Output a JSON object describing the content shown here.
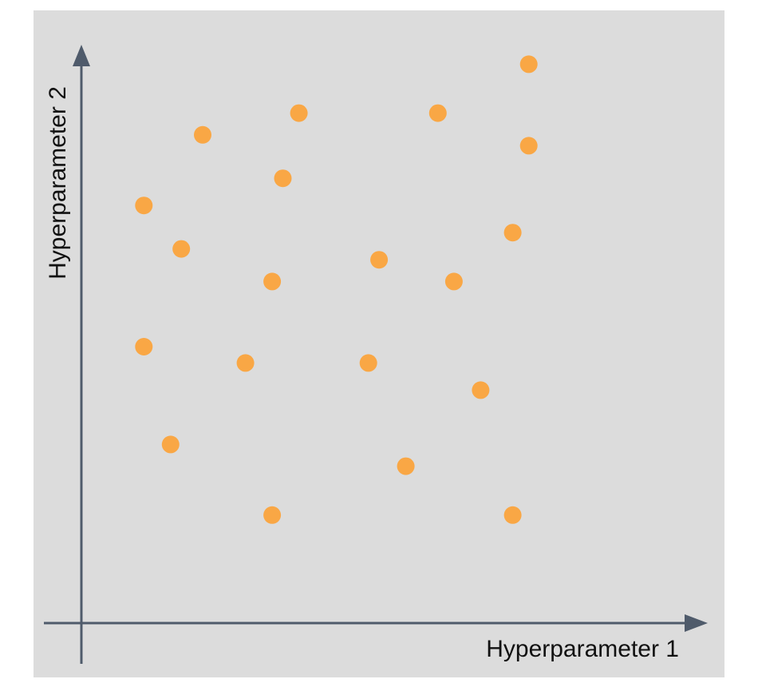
{
  "chart_data": {
    "type": "scatter",
    "title": "",
    "xlabel": "Hyperparameter 1",
    "ylabel": "Hyperparameter 2",
    "xlim": [
      0,
      10
    ],
    "ylim": [
      0,
      10
    ],
    "grid": false,
    "legend": "none",
    "point_color": "#f9a745",
    "series": [
      {
        "points": [
          {
            "x": 8.1,
            "y": 9.7
          },
          {
            "x": 3.8,
            "y": 8.8
          },
          {
            "x": 6.4,
            "y": 8.8
          },
          {
            "x": 2.0,
            "y": 8.4
          },
          {
            "x": 8.1,
            "y": 8.2
          },
          {
            "x": 3.5,
            "y": 7.6
          },
          {
            "x": 0.9,
            "y": 7.1
          },
          {
            "x": 5.3,
            "y": 6.1
          },
          {
            "x": 7.8,
            "y": 6.6
          },
          {
            "x": 1.6,
            "y": 6.3
          },
          {
            "x": 3.3,
            "y": 5.7
          },
          {
            "x": 6.7,
            "y": 5.7
          },
          {
            "x": 0.9,
            "y": 4.5
          },
          {
            "x": 2.8,
            "y": 4.2
          },
          {
            "x": 5.1,
            "y": 4.2
          },
          {
            "x": 7.2,
            "y": 3.7
          },
          {
            "x": 1.4,
            "y": 2.7
          },
          {
            "x": 5.8,
            "y": 2.3
          },
          {
            "x": 3.3,
            "y": 1.4
          },
          {
            "x": 7.8,
            "y": 1.4
          }
        ]
      }
    ]
  }
}
